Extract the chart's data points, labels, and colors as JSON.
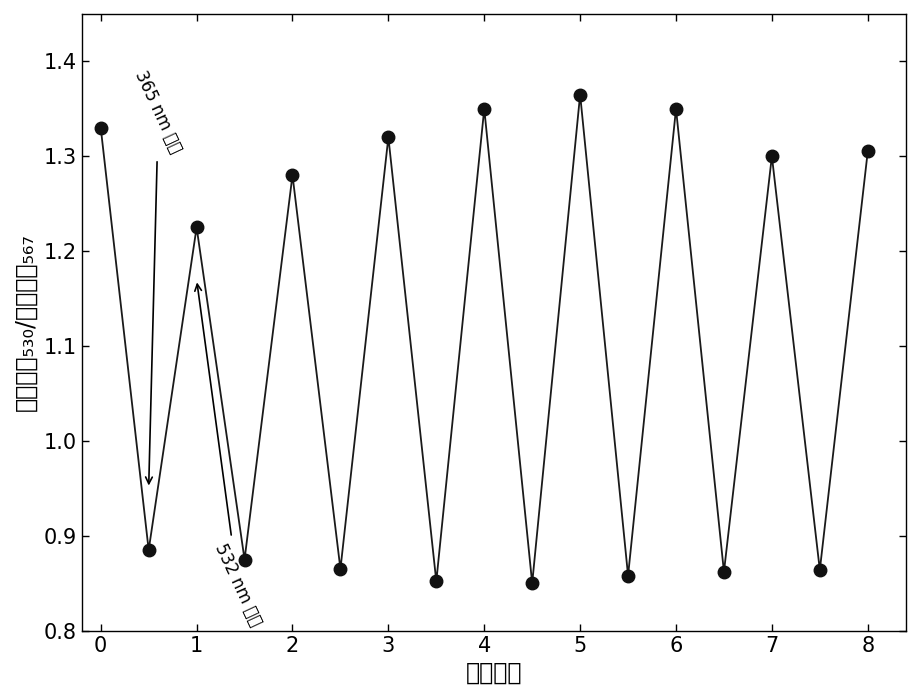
{
  "x": [
    0,
    0.5,
    1,
    1.5,
    2,
    2.5,
    3,
    3.5,
    4,
    4.5,
    5,
    5.5,
    6,
    6.5,
    7,
    7.5,
    8
  ],
  "y": [
    1.33,
    0.885,
    1.225,
    0.875,
    1.28,
    0.865,
    1.32,
    0.852,
    1.35,
    0.85,
    1.365,
    0.858,
    1.35,
    0.862,
    1.3,
    0.864,
    1.305
  ],
  "xlim": [
    -0.2,
    8.4
  ],
  "ylim": [
    0.8,
    1.45
  ],
  "xticks": [
    0,
    1,
    2,
    3,
    4,
    5,
    6,
    7,
    8
  ],
  "yticks": [
    0.8,
    0.9,
    1.0,
    1.1,
    1.2,
    1.3,
    1.4
  ],
  "xlabel": "循环次数",
  "annotation_365_text": "365 nm 光照",
  "annotation_532_text": "532 nm 光照",
  "line_color": "#1a1a1a",
  "marker_color": "#111111",
  "marker_size": 9,
  "line_width": 1.3,
  "bg_color": "#ffffff",
  "label_fontsize": 17,
  "tick_fontsize": 15,
  "annot_fontsize": 12
}
